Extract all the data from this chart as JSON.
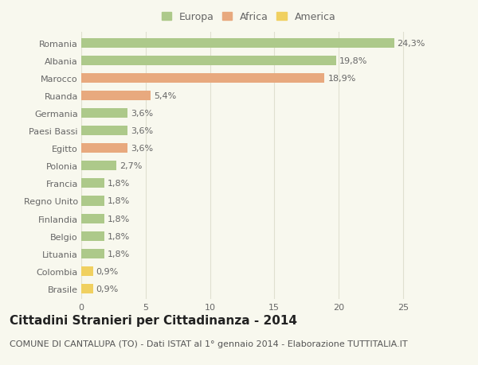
{
  "categories": [
    "Romania",
    "Albania",
    "Marocco",
    "Ruanda",
    "Germania",
    "Paesi Bassi",
    "Egitto",
    "Polonia",
    "Francia",
    "Regno Unito",
    "Finlandia",
    "Belgio",
    "Lituania",
    "Colombia",
    "Brasile"
  ],
  "values": [
    24.3,
    19.8,
    18.9,
    5.4,
    3.6,
    3.6,
    3.6,
    2.7,
    1.8,
    1.8,
    1.8,
    1.8,
    1.8,
    0.9,
    0.9
  ],
  "labels": [
    "24,3%",
    "19,8%",
    "18,9%",
    "5,4%",
    "3,6%",
    "3,6%",
    "3,6%",
    "2,7%",
    "1,8%",
    "1,8%",
    "1,8%",
    "1,8%",
    "1,8%",
    "0,9%",
    "0,9%"
  ],
  "colors": [
    "#adc98a",
    "#adc98a",
    "#e8a97e",
    "#e8a97e",
    "#adc98a",
    "#adc98a",
    "#e8a97e",
    "#adc98a",
    "#adc98a",
    "#adc98a",
    "#adc98a",
    "#adc98a",
    "#adc98a",
    "#f0d060",
    "#f0d060"
  ],
  "legend_labels": [
    "Europa",
    "Africa",
    "America"
  ],
  "legend_colors": [
    "#adc98a",
    "#e8a97e",
    "#f0d060"
  ],
  "title": "Cittadini Stranieri per Cittadinanza - 2014",
  "subtitle": "COMUNE DI CANTALUPA (TO) - Dati ISTAT al 1° gennaio 2014 - Elaborazione TUTTITALIA.IT",
  "xlim": [
    0,
    26
  ],
  "xticks": [
    0,
    5,
    10,
    15,
    20,
    25
  ],
  "background_color": "#f8f8ee",
  "grid_color": "#e0e0d0",
  "bar_height": 0.55,
  "title_fontsize": 11,
  "subtitle_fontsize": 8,
  "label_fontsize": 8,
  "tick_fontsize": 8,
  "legend_fontsize": 9
}
